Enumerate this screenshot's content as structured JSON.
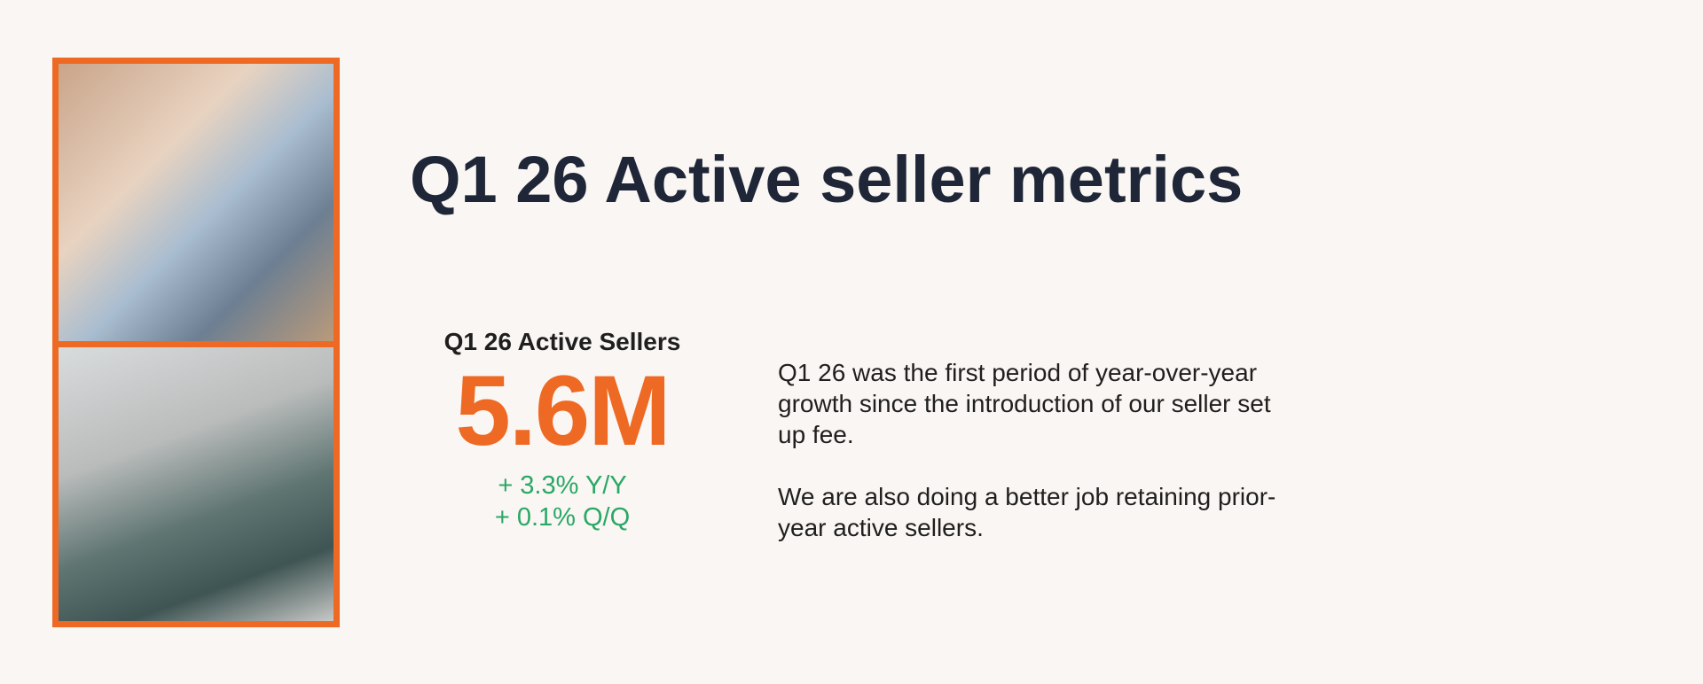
{
  "header": {
    "title": "Q1 26 Active seller metrics"
  },
  "metric": {
    "label": "Q1 26 Active Sellers",
    "value": "5.6M",
    "changes": [
      "+ 3.3% Y/Y",
      "+ 0.1% Q/Q"
    ]
  },
  "body": {
    "paragraphs": [
      "Q1 26 was the first period of year-over-year growth since the introduction of our seller set up fee.",
      "We are also doing a better job retaining prior-year active sellers."
    ]
  }
}
